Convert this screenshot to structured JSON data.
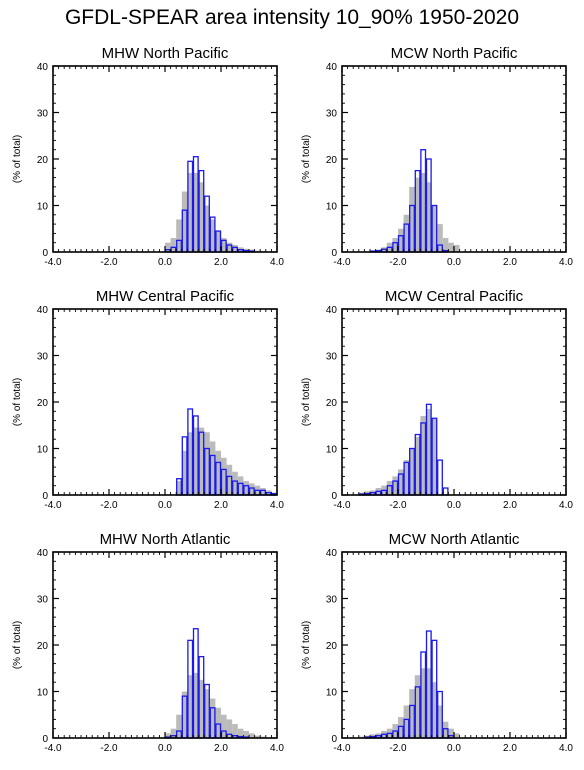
{
  "title": "GFDL-SPEAR area intensity 10_90% 1950-2020",
  "ylabel": "(% of total)",
  "colors": {
    "gray_fill": "#bbbbbb",
    "blue_outline": "#1a1aee",
    "axis": "#000000"
  },
  "chart_data": [
    {
      "type": "bar",
      "title": "MHW North Pacific",
      "xlim": [
        -4.0,
        4.0
      ],
      "ylim": [
        0,
        40
      ],
      "xticks": [
        "-4.0",
        "-2.0",
        "0.0",
        "2.0",
        "4.0"
      ],
      "yticks": [
        "0",
        "10",
        "20",
        "30",
        "40"
      ],
      "bin_width": 0.2,
      "series": [
        {
          "bin_starts": [
            0.0,
            0.2,
            0.4,
            0.6,
            0.8,
            1.0,
            1.2,
            1.4,
            1.6,
            1.8,
            2.0,
            2.2,
            2.4,
            2.6,
            2.8,
            3.0,
            3.2,
            3.4
          ],
          "values": [
            2.0,
            3.0,
            7.0,
            13.0,
            17.0,
            17.0,
            15.0,
            10.0,
            7.0,
            4.5,
            3.0,
            2.0,
            1.5,
            1.0,
            0.7,
            0.5,
            0.3,
            0.2
          ]
        },
        {
          "bin_starts": [
            0.0,
            0.2,
            0.4,
            0.6,
            0.8,
            1.0,
            1.2,
            1.4,
            1.6,
            1.8,
            2.0,
            2.2,
            2.4,
            2.6,
            2.8,
            3.0
          ],
          "values": [
            0.5,
            1.0,
            2.5,
            9.0,
            19.5,
            20.5,
            17.5,
            12.0,
            7.5,
            4.5,
            2.5,
            1.5,
            1.0,
            0.5,
            0.3,
            0.2
          ]
        }
      ]
    },
    {
      "type": "bar",
      "title": "MCW North Pacific",
      "xlim": [
        -4.0,
        4.0
      ],
      "ylim": [
        0,
        40
      ],
      "xticks": [
        "-4.0",
        "-2.0",
        "0.0",
        "2.0",
        "4.0"
      ],
      "yticks": [
        "0",
        "10",
        "20",
        "30",
        "40"
      ],
      "bin_width": 0.2,
      "series": [
        {
          "bin_starts": [
            -3.0,
            -2.8,
            -2.6,
            -2.4,
            -2.2,
            -2.0,
            -1.8,
            -1.6,
            -1.4,
            -1.2,
            -1.0,
            -0.8,
            -0.6,
            -0.4,
            -0.2,
            0.0
          ],
          "values": [
            0.3,
            0.5,
            1.0,
            2.0,
            3.0,
            5.0,
            8.0,
            14.0,
            16.0,
            17.0,
            15.0,
            10.0,
            6.0,
            3.0,
            2.0,
            1.5
          ]
        },
        {
          "bin_starts": [
            -3.0,
            -2.8,
            -2.6,
            -2.4,
            -2.2,
            -2.0,
            -1.8,
            -1.6,
            -1.4,
            -1.2,
            -1.0,
            -0.8,
            -0.6,
            -0.4
          ],
          "values": [
            0.2,
            0.3,
            0.6,
            1.0,
            2.0,
            3.5,
            6.0,
            10.0,
            17.5,
            22.0,
            20.0,
            10.0,
            1.5,
            0.3
          ]
        }
      ]
    },
    {
      "type": "bar",
      "title": "MHW Central Pacific",
      "xlim": [
        -4.0,
        4.0
      ],
      "ylim": [
        0,
        40
      ],
      "xticks": [
        "-4.0",
        "-2.0",
        "0.0",
        "2.0",
        "4.0"
      ],
      "yticks": [
        "0",
        "10",
        "20",
        "30",
        "40"
      ],
      "bin_width": 0.2,
      "series": [
        {
          "bin_starts": [
            0.4,
            0.6,
            0.8,
            1.0,
            1.2,
            1.4,
            1.6,
            1.8,
            2.0,
            2.2,
            2.4,
            2.6,
            2.8,
            3.0,
            3.2,
            3.4,
            3.6,
            3.8
          ],
          "values": [
            3.0,
            9.5,
            13.5,
            14.5,
            14.5,
            13.5,
            11.5,
            9.5,
            8.0,
            6.5,
            5.0,
            4.0,
            3.0,
            2.5,
            2.0,
            1.5,
            1.0,
            0.5
          ]
        },
        {
          "bin_starts": [
            0.4,
            0.6,
            0.8,
            1.0,
            1.2,
            1.4,
            1.6,
            1.8,
            2.0,
            2.2,
            2.4,
            2.6,
            2.8,
            3.0,
            3.2,
            3.4,
            3.6,
            3.8
          ],
          "values": [
            3.5,
            12.5,
            18.5,
            17.0,
            13.5,
            10.0,
            8.5,
            7.0,
            5.5,
            4.0,
            3.0,
            2.5,
            2.0,
            1.5,
            1.0,
            1.0,
            0.5,
            0.3
          ]
        }
      ]
    },
    {
      "type": "bar",
      "title": "MCW Central Pacific",
      "xlim": [
        -4.0,
        4.0
      ],
      "ylim": [
        0,
        40
      ],
      "xticks": [
        "-4.0",
        "-2.0",
        "0.0",
        "2.0",
        "4.0"
      ],
      "yticks": [
        "0",
        "10",
        "20",
        "30",
        "40"
      ],
      "bin_width": 0.2,
      "series": [
        {
          "bin_starts": [
            -3.4,
            -3.2,
            -3.0,
            -2.8,
            -2.6,
            -2.4,
            -2.2,
            -2.0,
            -1.8,
            -1.6,
            -1.4,
            -1.2,
            -1.0,
            -0.8
          ],
          "values": [
            0.5,
            0.8,
            1.0,
            1.5,
            2.0,
            3.0,
            4.0,
            5.5,
            7.5,
            10.0,
            12.5,
            17.0,
            18.5,
            16.5
          ]
        },
        {
          "bin_starts": [
            -3.4,
            -3.2,
            -3.0,
            -2.8,
            -2.6,
            -2.4,
            -2.2,
            -2.0,
            -1.8,
            -1.6,
            -1.4,
            -1.2,
            -1.0,
            -0.8,
            -0.6,
            -0.4
          ],
          "values": [
            0.2,
            0.3,
            0.5,
            0.8,
            1.0,
            2.0,
            3.0,
            4.5,
            7.0,
            10.0,
            13.0,
            15.5,
            19.5,
            16.5,
            7.5,
            1.5
          ]
        }
      ]
    },
    {
      "type": "bar",
      "title": "MHW North Atlantic",
      "xlim": [
        -4.0,
        4.0
      ],
      "ylim": [
        0,
        40
      ],
      "xticks": [
        "-4.0",
        "-2.0",
        "0.0",
        "2.0",
        "4.0"
      ],
      "yticks": [
        "0",
        "10",
        "20",
        "30",
        "40"
      ],
      "bin_width": 0.2,
      "series": [
        {
          "bin_starts": [
            0.0,
            0.2,
            0.4,
            0.6,
            0.8,
            1.0,
            1.2,
            1.4,
            1.6,
            1.8,
            2.0,
            2.2,
            2.4,
            2.6,
            2.8,
            3.0,
            3.2,
            3.4
          ],
          "values": [
            1.0,
            2.0,
            5.0,
            10.0,
            13.5,
            14.0,
            12.5,
            10.5,
            8.5,
            6.5,
            5.0,
            4.0,
            3.0,
            2.0,
            1.5,
            1.0,
            0.5,
            0.3
          ]
        },
        {
          "bin_starts": [
            0.0,
            0.2,
            0.4,
            0.6,
            0.8,
            1.0,
            1.2,
            1.4,
            1.6,
            1.8,
            2.0,
            2.2,
            2.4,
            2.6,
            2.8
          ],
          "values": [
            0.2,
            0.5,
            1.5,
            9.0,
            21.0,
            23.5,
            17.5,
            11.5,
            6.5,
            3.0,
            1.5,
            0.8,
            0.5,
            0.3,
            0.2
          ]
        }
      ]
    },
    {
      "type": "bar",
      "title": "MCW North Atlantic",
      "xlim": [
        -4.0,
        4.0
      ],
      "ylim": [
        0,
        40
      ],
      "xticks": [
        "-4.0",
        "-2.0",
        "0.0",
        "2.0",
        "4.0"
      ],
      "yticks": [
        "0",
        "10",
        "20",
        "30",
        "40"
      ],
      "bin_width": 0.2,
      "series": [
        {
          "bin_starts": [
            -3.4,
            -3.2,
            -3.0,
            -2.8,
            -2.6,
            -2.4,
            -2.2,
            -2.0,
            -1.8,
            -1.6,
            -1.4,
            -1.2,
            -1.0,
            -0.8,
            -0.6,
            -0.4,
            -0.2,
            0.0
          ],
          "values": [
            0.3,
            0.5,
            0.8,
            1.0,
            1.5,
            2.0,
            3.0,
            4.5,
            7.0,
            10.5,
            13.5,
            15.0,
            15.0,
            12.0,
            7.0,
            3.5,
            2.0,
            1.0
          ]
        },
        {
          "bin_starts": [
            -3.2,
            -3.0,
            -2.8,
            -2.6,
            -2.4,
            -2.2,
            -2.0,
            -1.8,
            -1.6,
            -1.4,
            -1.2,
            -1.0,
            -0.8,
            -0.6,
            -0.4,
            -0.2
          ],
          "values": [
            0.2,
            0.3,
            0.5,
            0.8,
            1.0,
            1.5,
            2.5,
            4.0,
            7.0,
            11.0,
            18.5,
            23.0,
            21.0,
            10.0,
            2.0,
            0.5
          ]
        }
      ]
    }
  ]
}
